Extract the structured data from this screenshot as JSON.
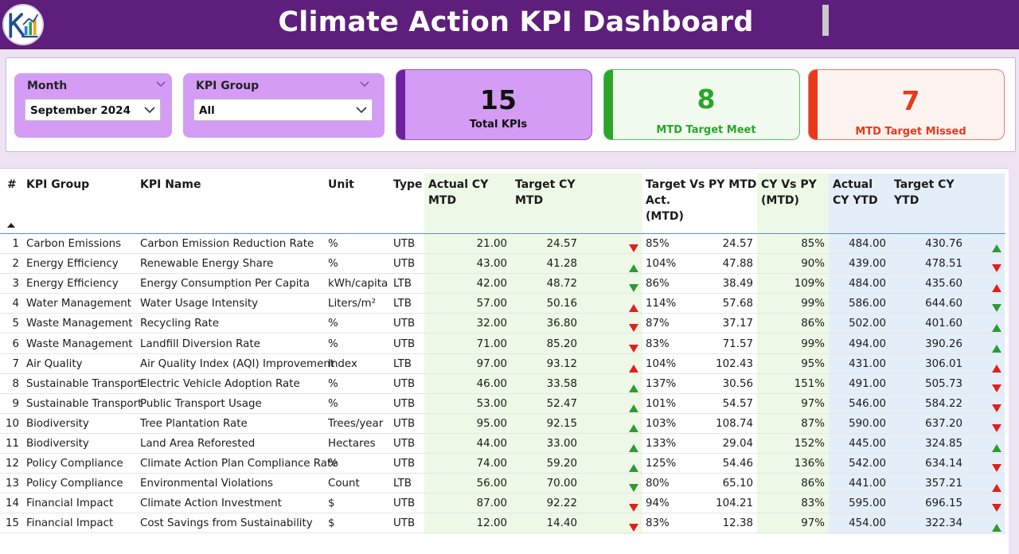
{
  "header": {
    "title": "Climate Action KPI Dashboard",
    "logo_icon": "kpi-logo"
  },
  "filters": {
    "month": {
      "label": "Month",
      "value": "September 2024"
    },
    "kpi_group": {
      "label": "KPI Group",
      "value": "All"
    }
  },
  "cards": {
    "total": {
      "value": "15",
      "caption": "Total KPIs",
      "color": "#6f1fa1",
      "bg": "#d49cf4"
    },
    "meet": {
      "value": "8",
      "caption": "MTD Target Meet",
      "color": "#2aa52a",
      "bg": "#f2fbf0"
    },
    "missed": {
      "value": "7",
      "caption": "MTD Target Missed",
      "color": "#e8391b",
      "bg": "#fdf3f0"
    }
  },
  "colors": {
    "up": "#2e9a35",
    "down": "#e02020",
    "mtd_bg": "#eef8e6",
    "ytd_bg": "#e3eef8"
  },
  "table": {
    "headers": {
      "num": "#",
      "group": "KPI Group",
      "name": "KPI Name",
      "unit": "Unit",
      "type": "Type",
      "actual_mtd_1": "Actual CY",
      "actual_mtd_2": "MTD",
      "target_mtd_1": "Target CY",
      "target_mtd_2": "MTD",
      "tva_1": "Target Vs",
      "tva_2": "Act.",
      "tva_3": "(MTD)",
      "py_mtd": "PY MTD",
      "cyvpy_1": "CY Vs PY",
      "cyvpy_2": "(MTD)",
      "actual_ytd_1": "Actual",
      "actual_ytd_2": "CY YTD",
      "target_ytd_1": "Target CY",
      "target_ytd_2": "YTD"
    },
    "rows": [
      [
        "1",
        "Carbon Emissions",
        "Carbon Emission Reduction Rate",
        "%",
        "UTB",
        "21.00",
        "24.57",
        "down",
        "85%",
        "24.57",
        "85%",
        "484.00",
        "430.76",
        "up"
      ],
      [
        "2",
        "Energy Efficiency",
        "Renewable Energy Share",
        "%",
        "UTB",
        "43.00",
        "41.28",
        "up",
        "104%",
        "47.88",
        "90%",
        "439.00",
        "478.51",
        "down"
      ],
      [
        "3",
        "Energy Efficiency",
        "Energy Consumption Per Capita",
        "kWh/capita",
        "LTB",
        "42.00",
        "48.72",
        "down-green",
        "86%",
        "38.49",
        "109%",
        "484.00",
        "435.60",
        "up-red"
      ],
      [
        "4",
        "Water Management",
        "Water Usage Intensity",
        "Liters/m²",
        "LTB",
        "57.00",
        "50.16",
        "up-red",
        "114%",
        "57.68",
        "99%",
        "586.00",
        "644.60",
        "down-green"
      ],
      [
        "5",
        "Waste Management",
        "Recycling Rate",
        "%",
        "UTB",
        "32.00",
        "36.80",
        "down",
        "87%",
        "37.17",
        "86%",
        "502.00",
        "401.60",
        "up"
      ],
      [
        "6",
        "Waste Management",
        "Landfill Diversion Rate",
        "%",
        "UTB",
        "71.00",
        "85.20",
        "down",
        "83%",
        "71.57",
        "99%",
        "494.00",
        "390.26",
        "up"
      ],
      [
        "7",
        "Air Quality",
        "Air Quality Index (AQI) Improvement",
        "Index",
        "LTB",
        "97.00",
        "93.12",
        "up-red",
        "104%",
        "102.43",
        "95%",
        "431.00",
        "306.01",
        "up-red"
      ],
      [
        "8",
        "Sustainable Transport",
        "Electric Vehicle Adoption Rate",
        "%",
        "UTB",
        "46.00",
        "33.58",
        "up",
        "137%",
        "30.56",
        "151%",
        "491.00",
        "505.73",
        "down"
      ],
      [
        "9",
        "Sustainable Transport",
        "Public Transport Usage",
        "%",
        "UTB",
        "53.00",
        "52.47",
        "up",
        "101%",
        "54.57",
        "97%",
        "546.00",
        "584.22",
        "down"
      ],
      [
        "10",
        "Biodiversity",
        "Tree Plantation Rate",
        "Trees/year",
        "UTB",
        "95.00",
        "92.15",
        "up",
        "103%",
        "108.74",
        "87%",
        "590.00",
        "637.20",
        "down"
      ],
      [
        "11",
        "Biodiversity",
        "Land Area Reforested",
        "Hectares",
        "UTB",
        "44.00",
        "33.00",
        "up",
        "133%",
        "29.04",
        "152%",
        "445.00",
        "324.85",
        "up"
      ],
      [
        "12",
        "Policy Compliance",
        "Climate Action Plan Compliance Rate",
        "%",
        "UTB",
        "74.00",
        "59.20",
        "up",
        "125%",
        "54.46",
        "136%",
        "542.00",
        "634.14",
        "down"
      ],
      [
        "13",
        "Policy Compliance",
        "Environmental Violations",
        "Count",
        "LTB",
        "56.00",
        "70.00",
        "down-green",
        "80%",
        "65.10",
        "86%",
        "441.00",
        "357.21",
        "up-red"
      ],
      [
        "14",
        "Financial Impact",
        "Climate Action Investment",
        "$",
        "UTB",
        "87.00",
        "92.22",
        "down",
        "94%",
        "104.21",
        "83%",
        "595.00",
        "696.15",
        "down"
      ],
      [
        "15",
        "Financial Impact",
        "Cost Savings from Sustainability",
        "$",
        "UTB",
        "12.00",
        "14.40",
        "down",
        "83%",
        "12.38",
        "97%",
        "454.00",
        "322.34",
        "up"
      ]
    ]
  }
}
